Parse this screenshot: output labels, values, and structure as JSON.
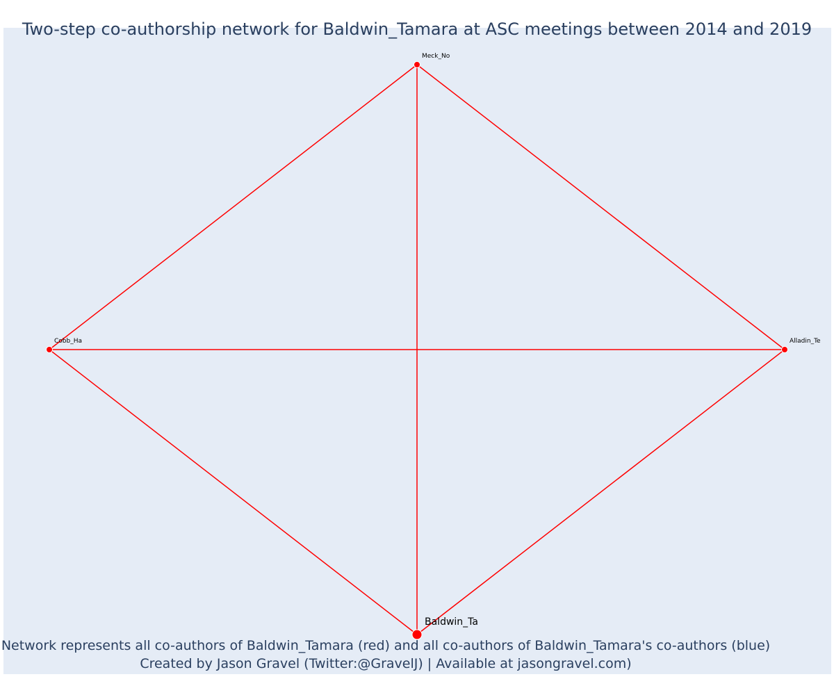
{
  "title": "Two-step co-authorship network for Baldwin_Tamara at ASC meetings between 2014 and 2019",
  "footer": {
    "line1": "Network represents all co-authors of Baldwin_Tamara (red) and all co-authors of Baldwin_Tamara's co-authors (blue)",
    "line2": "Created by Jason Gravel (Twitter:@GravelJ) | Available at jasongravel.com)"
  },
  "colors": {
    "background": "#e5ecf6",
    "edge": "#ff0000",
    "node_red": "#ff0000",
    "text": "#2a3f5f"
  },
  "nodes": [
    {
      "id": "Meck_No",
      "label": "Meck_No",
      "color": "red",
      "main": false
    },
    {
      "id": "Cobb_Ha",
      "label": "Cobb_Ha",
      "color": "red",
      "main": false
    },
    {
      "id": "Alladin_Te",
      "label": "Alladin_Te",
      "color": "red",
      "main": false
    },
    {
      "id": "Baldwin_Ta",
      "label": "Baldwin_Ta",
      "color": "red",
      "main": true
    }
  ],
  "edges": [
    [
      "Meck_No",
      "Cobb_Ha"
    ],
    [
      "Meck_No",
      "Alladin_Te"
    ],
    [
      "Meck_No",
      "Baldwin_Ta"
    ],
    [
      "Cobb_Ha",
      "Alladin_Te"
    ],
    [
      "Cobb_Ha",
      "Baldwin_Ta"
    ],
    [
      "Alladin_Te",
      "Baldwin_Ta"
    ]
  ]
}
